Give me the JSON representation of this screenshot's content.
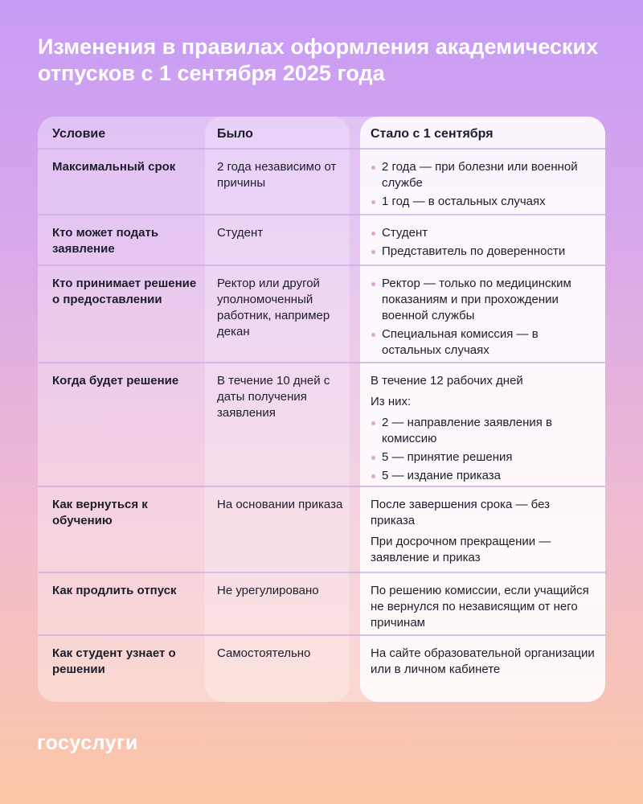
{
  "title": "Изменения в правилах оформления академических отпусков с 1 сентября 2025 года",
  "headers": [
    "Условие",
    "Было",
    "Стало с 1 сентября"
  ],
  "rows": [
    {
      "condition": "Максимальный срок",
      "before": "2 года независимо от причины",
      "after_text": [],
      "after_bullets": [
        "2 года — при болезни или военной службе",
        "1 год — в остальных случаях"
      ]
    },
    {
      "condition": "Кто может подать заявление",
      "before": "Студент",
      "after_text": [],
      "after_bullets": [
        "Студент",
        "Представитель по доверенности"
      ]
    },
    {
      "condition": "Кто принимает решение о предоставлении",
      "before": "Ректор или другой уполномоченный работник, например декан",
      "after_text": [],
      "after_bullets": [
        "Ректор — только по медицинским показаниям и при прохождении военной службы",
        "Специальная комиссия — в остальных случаях"
      ]
    },
    {
      "condition": "Когда будет решение",
      "before": "В течение 10 дней с даты получения заявления",
      "after_text": [
        "В течение 12 рабочих дней",
        "Из них:"
      ],
      "after_bullets": [
        "2 — направление заявления в комиссию",
        "5 — принятие решения",
        "5 — издание приказа"
      ]
    },
    {
      "condition": "Как вернуться к обучению",
      "before": "На основании приказа",
      "after_text": [
        "После завершения срока — без приказа",
        "При досрочном прекращении — заявление и приказ"
      ],
      "after_bullets": []
    },
    {
      "condition": "Как продлить отпуск",
      "before": "Не урегулировано",
      "after_text": [
        "По решению комиссии, если учащийся не вернулся по независящим от него причинам"
      ],
      "after_bullets": []
    },
    {
      "condition": "Как студент узнает о решении",
      "before": "Самостоятельно",
      "after_text": [
        "На сайте образовательной организации или в личном кабинете"
      ],
      "after_bullets": []
    }
  ],
  "logo": "госуслуги",
  "colors": {
    "bullet": "#e3a3d8",
    "bg_top": "#c79cf6",
    "bg_bottom": "#fcc7a6"
  }
}
